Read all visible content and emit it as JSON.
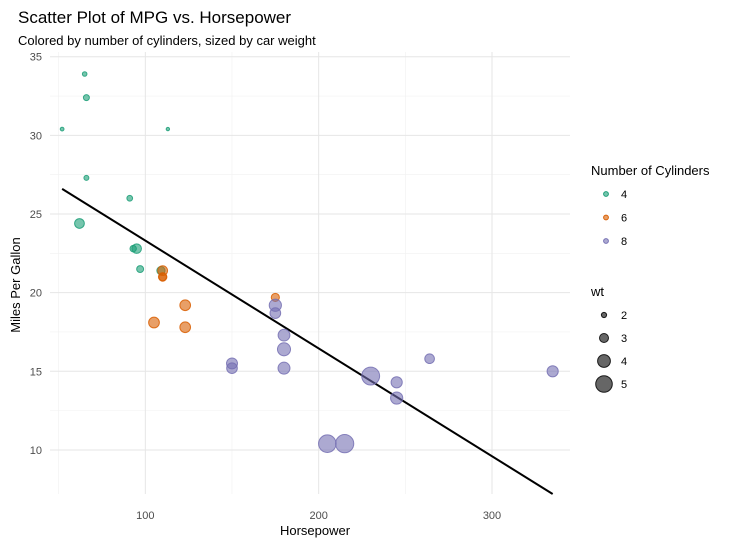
{
  "chart_data": {
    "type": "scatter",
    "title": "Scatter Plot of MPG vs. Horsepower",
    "subtitle": "Colored by number of cylinders, sized by car weight",
    "xlabel": "Horsepower",
    "ylabel": "Miles Per Gallon",
    "xlim": [
      45,
      345
    ],
    "ylim": [
      7.2,
      35.3
    ],
    "x_ticks": [
      100,
      200,
      300
    ],
    "y_ticks": [
      10,
      15,
      20,
      25,
      30,
      35
    ],
    "x_minor_ticks": [
      50,
      150,
      250
    ],
    "y_minor_ticks": [
      12.5,
      17.5,
      22.5,
      27.5,
      32.5
    ],
    "grid": true,
    "legend_position": "right",
    "legend_color": {
      "title": "Number of Cylinders",
      "items": [
        {
          "label": "4",
          "color": "#1b9e77"
        },
        {
          "label": "6",
          "color": "#d95f02"
        },
        {
          "label": "8",
          "color": "#7570b3"
        }
      ]
    },
    "legend_size": {
      "title": "wt",
      "items": [
        {
          "label": "2",
          "wt": 2
        },
        {
          "label": "3",
          "wt": 3
        },
        {
          "label": "4",
          "wt": 4
        },
        {
          "label": "5",
          "wt": 5
        }
      ]
    },
    "fit_line": {
      "x": [
        52,
        335
      ],
      "y": [
        26.6,
        7.2
      ],
      "color": "#000000"
    },
    "series": [
      {
        "name": "4",
        "color": "#1b9e77",
        "points": [
          {
            "x": 93,
            "y": 22.8,
            "wt": 2.32
          },
          {
            "x": 62,
            "y": 24.4,
            "wt": 3.19
          },
          {
            "x": 95,
            "y": 22.8,
            "wt": 3.15
          },
          {
            "x": 66,
            "y": 32.4,
            "wt": 2.2
          },
          {
            "x": 52,
            "y": 30.4,
            "wt": 1.615
          },
          {
            "x": 65,
            "y": 33.9,
            "wt": 1.835
          },
          {
            "x": 97,
            "y": 21.5,
            "wt": 2.465
          },
          {
            "x": 66,
            "y": 27.3,
            "wt": 1.935
          },
          {
            "x": 91,
            "y": 26.0,
            "wt": 2.14
          },
          {
            "x": 113,
            "y": 30.4,
            "wt": 1.513
          },
          {
            "x": 109,
            "y": 21.4,
            "wt": 2.78
          }
        ]
      },
      {
        "name": "6",
        "color": "#d95f02",
        "points": [
          {
            "x": 110,
            "y": 21.0,
            "wt": 2.62
          },
          {
            "x": 110,
            "y": 21.0,
            "wt": 2.875
          },
          {
            "x": 110,
            "y": 21.4,
            "wt": 3.215
          },
          {
            "x": 105,
            "y": 18.1,
            "wt": 3.46
          },
          {
            "x": 123,
            "y": 19.2,
            "wt": 3.44
          },
          {
            "x": 123,
            "y": 17.8,
            "wt": 3.44
          },
          {
            "x": 175,
            "y": 19.7,
            "wt": 2.77
          }
        ]
      },
      {
        "name": "8",
        "color": "#7570b3",
        "points": [
          {
            "x": 175,
            "y": 18.7,
            "wt": 3.44
          },
          {
            "x": 245,
            "y": 14.3,
            "wt": 3.57
          },
          {
            "x": 180,
            "y": 16.4,
            "wt": 4.07
          },
          {
            "x": 180,
            "y": 17.3,
            "wt": 3.73
          },
          {
            "x": 180,
            "y": 15.2,
            "wt": 3.78
          },
          {
            "x": 205,
            "y": 10.4,
            "wt": 5.25
          },
          {
            "x": 215,
            "y": 10.4,
            "wt": 5.424
          },
          {
            "x": 230,
            "y": 14.7,
            "wt": 5.345
          },
          {
            "x": 150,
            "y": 15.5,
            "wt": 3.52
          },
          {
            "x": 150,
            "y": 15.2,
            "wt": 3.435
          },
          {
            "x": 245,
            "y": 13.3,
            "wt": 3.84
          },
          {
            "x": 175,
            "y": 19.2,
            "wt": 3.845
          },
          {
            "x": 264,
            "y": 15.8,
            "wt": 3.17
          },
          {
            "x": 335,
            "y": 15.0,
            "wt": 3.57
          }
        ]
      }
    ]
  }
}
